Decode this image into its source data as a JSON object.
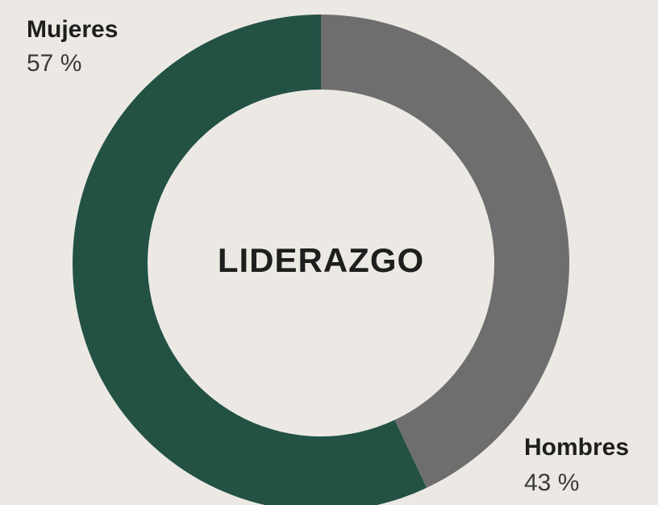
{
  "chart_data": {
    "type": "donut",
    "title": "LIDERAZGO",
    "categories": [
      "Mujeres",
      "Hombres"
    ],
    "values": [
      57,
      43
    ],
    "value_labels": [
      "57 %",
      "43 %"
    ],
    "colors": [
      "#235245",
      "#6e6e6e"
    ]
  }
}
